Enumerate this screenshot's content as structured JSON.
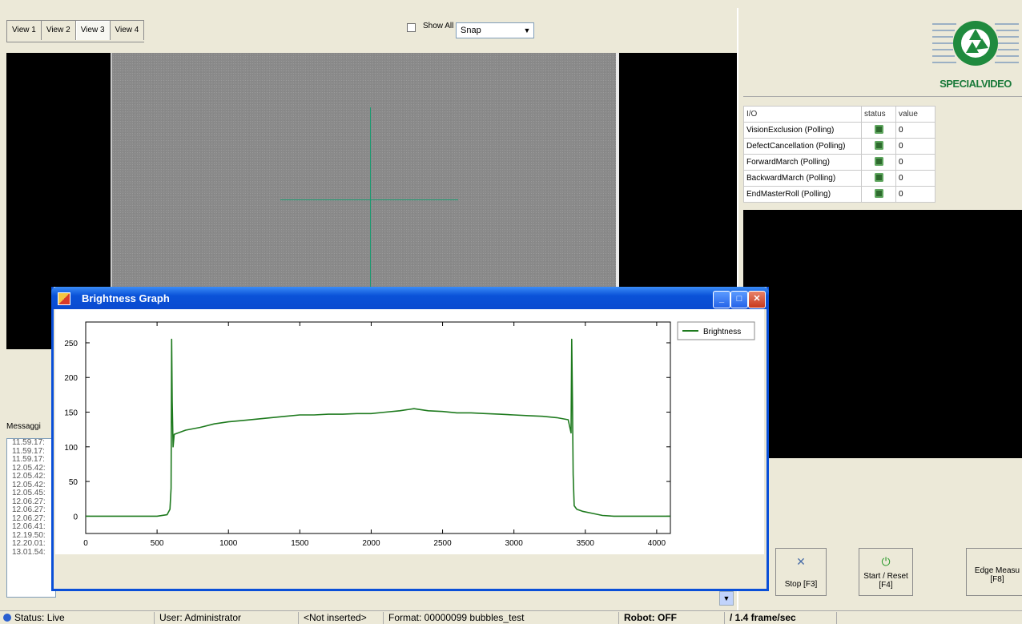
{
  "toolbar": {
    "tabs": [
      "View 1",
      "View 2",
      "View 3",
      "View 4"
    ],
    "active_tab": "View 3",
    "show_all_label": "Show All",
    "mode_select": "Snap"
  },
  "logo": {
    "text": "SPECIALVIDEO"
  },
  "io_table": {
    "headers": [
      "I/O",
      "status",
      "value"
    ],
    "rows": [
      {
        "name": "VisionExclusion (Polling)",
        "value": "0"
      },
      {
        "name": "DefectCancellation (Polling)",
        "value": "0"
      },
      {
        "name": "ForwardMarch (Polling)",
        "value": "0"
      },
      {
        "name": "BackwardMarch (Polling)",
        "value": "0"
      },
      {
        "name": "EndMasterRoll (Polling)",
        "value": "0"
      }
    ]
  },
  "buttons": {
    "stop": "Stop [F3]",
    "start_reset": "Start / Reset [F4]",
    "edge_measure": "Edge Measu [F8]"
  },
  "messages": {
    "title": "Messaggi",
    "items": [
      "11.59.17:",
      "11.59.17:",
      "11.59.17:",
      "12.05.42:",
      "12.05.42:",
      "12.05.42:",
      "12.05.45:",
      "12.06.27:",
      "12.06.27:",
      "12.06.27:",
      "12.06.41:",
      "12.19.50:",
      "12.20.01:",
      "13.01.54:"
    ]
  },
  "status_bar": {
    "status": "Status: Live",
    "user": "User: Administrator",
    "insert": "<Not inserted>",
    "format": "Format: 00000099 bubbles_test",
    "robot": "Robot: OFF",
    "fps": "/ 1.4 frame/sec"
  },
  "graph_window": {
    "title": "Brightness Graph"
  },
  "chart_data": {
    "type": "line",
    "title": "",
    "xlabel": "",
    "ylabel": "",
    "xlim": [
      0,
      4096
    ],
    "ylim": [
      -25,
      280
    ],
    "xticks": [
      0,
      500,
      1000,
      1500,
      2000,
      2500,
      3000,
      3500,
      4000
    ],
    "yticks": [
      0,
      50,
      100,
      150,
      200,
      250
    ],
    "legend_position": "top-right",
    "series": [
      {
        "name": "Brightness",
        "color": "#1e7a1e",
        "x": [
          0,
          500,
          570,
          590,
          598,
          602,
          606,
          612,
          620,
          700,
          800,
          900,
          1000,
          1100,
          1200,
          1300,
          1400,
          1500,
          1600,
          1700,
          1800,
          1900,
          2000,
          2100,
          2200,
          2300,
          2400,
          2500,
          2600,
          2700,
          2800,
          2900,
          3000,
          3100,
          3200,
          3300,
          3380,
          3400,
          3405,
          3410,
          3415,
          3422,
          3440,
          3480,
          3550,
          3620,
          3700,
          4096
        ],
        "y": [
          0,
          0,
          2,
          10,
          40,
          255,
          165,
          100,
          118,
          124,
          128,
          133,
          136,
          138,
          140,
          142,
          144,
          146,
          146,
          147,
          147,
          148,
          148,
          150,
          152,
          155,
          152,
          151,
          149,
          149,
          148,
          147,
          146,
          145,
          144,
          142,
          139,
          120,
          255,
          170,
          60,
          15,
          10,
          7,
          4,
          1,
          0,
          0
        ]
      }
    ]
  }
}
